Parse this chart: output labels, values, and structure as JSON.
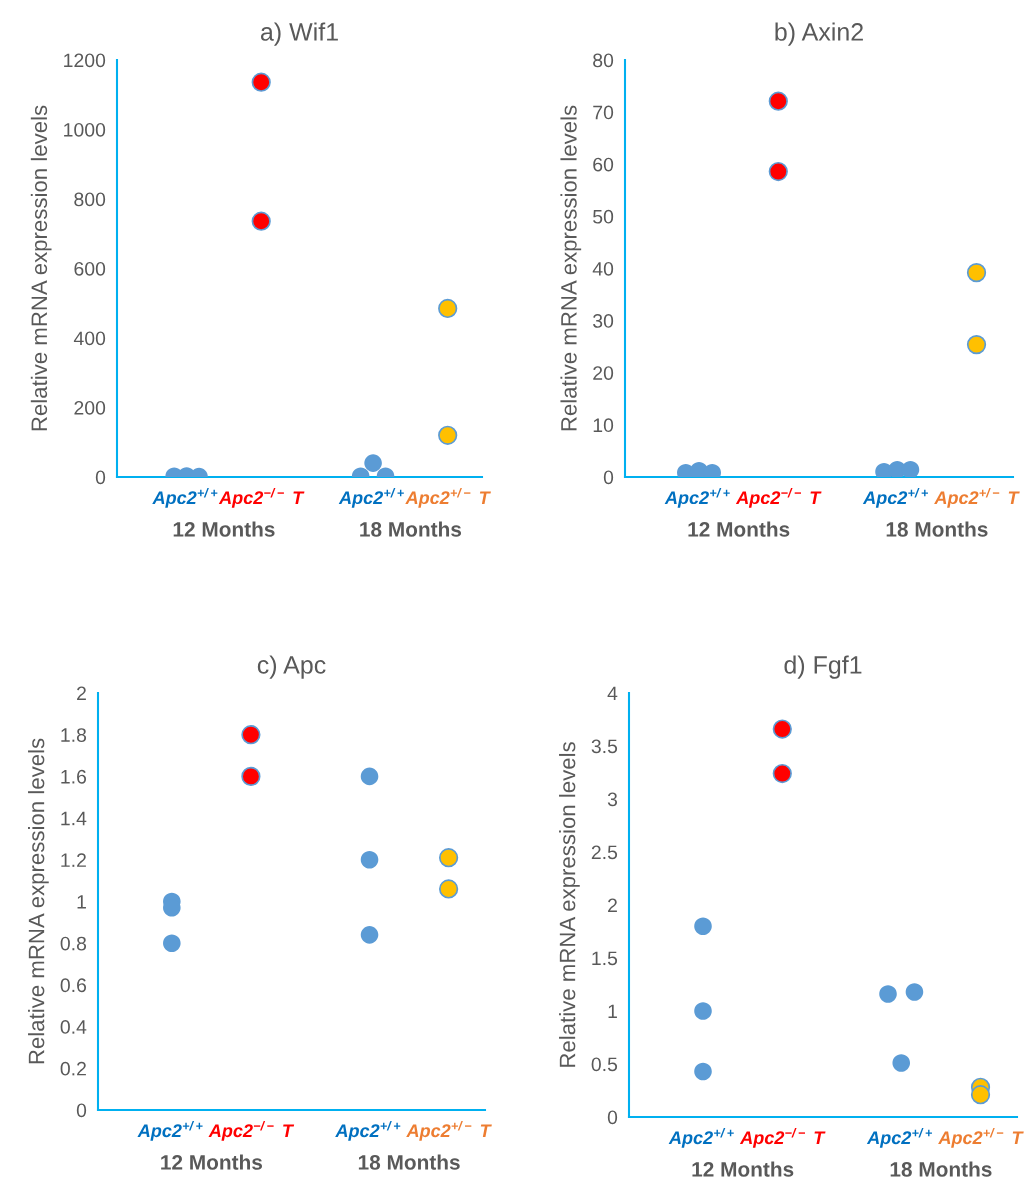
{
  "chart_data": [
    {
      "type": "scatter",
      "title": "a) Wif1",
      "ylabel": "Relative mRNA expression levels",
      "ylim": [
        0,
        1200
      ],
      "yticks": [
        0,
        200,
        400,
        600,
        800,
        1000,
        1200
      ],
      "categories": [
        null,
        "Apc2$^{+/+}$",
        null,
        null,
        null,
        null,
        null,
        "Apc2$^{−/−}$ T",
        null,
        null,
        null,
        null,
        null,
        null,
        null,
        null,
        "Apc2$^{+/+}$",
        null,
        null,
        null,
        null,
        null,
        "Apc2$^{+/−}$ T"
      ],
      "annotations": [
        "12 Months",
        "18 Months"
      ],
      "grid": false,
      "marker": "circle",
      "series": [
        {
          "color": "#5b9bd5",
          "values": [
            2,
            3,
            1,
            null,
            null,
            null,
            null,
            null,
            null,
            null,
            null,
            null,
            null,
            null,
            null,
            2,
            40,
            2,
            null,
            null,
            null,
            null,
            null
          ]
        },
        {
          "color": "#ff0000",
          "values": [
            null,
            null,
            null,
            null,
            null,
            null,
            null,
            1136,
            null,
            null,
            null,
            null,
            null,
            null,
            null,
            null,
            null,
            null,
            null,
            null,
            null,
            null,
            null
          ]
        },
        {
          "color": "#ff0000",
          "values": [
            null,
            null,
            null,
            null,
            null,
            null,
            null,
            736,
            null,
            null,
            null,
            null,
            null,
            null,
            null,
            null,
            null,
            null,
            null,
            null,
            null,
            null,
            null
          ]
        },
        {
          "color": "#ffc000",
          "values": [
            null,
            null,
            null,
            null,
            null,
            null,
            null,
            null,
            null,
            null,
            null,
            null,
            null,
            null,
            null,
            null,
            null,
            null,
            null,
            null,
            null,
            null,
            485
          ]
        },
        {
          "color": "#ffc000",
          "values": [
            null,
            null,
            null,
            null,
            null,
            null,
            null,
            null,
            null,
            null,
            null,
            null,
            null,
            null,
            null,
            null,
            null,
            null,
            null,
            null,
            null,
            null,
            120
          ]
        }
      ]
    },
    {
      "type": "scatter",
      "title": "b) Axin2",
      "ylabel": "Relative mRNA expression levels",
      "ylim": [
        0,
        80
      ],
      "yticks": [
        0,
        10,
        20,
        30,
        40,
        50,
        60,
        70,
        80
      ],
      "categories": [
        null,
        "Apc2$^{+/+}$",
        null,
        null,
        null,
        null,
        null,
        "Apc2$^{−/−}$ T",
        null,
        null,
        null,
        null,
        null,
        null,
        null,
        null,
        "Apc2$^{+/+}$",
        null,
        null,
        null,
        null,
        null,
        "Apc2$^{+/−}$ T"
      ],
      "annotations": [
        "12 Months",
        "18 Months"
      ],
      "grid": false,
      "marker": "circle",
      "series": [
        {
          "color": "#5b9bd5",
          "values": [
            0.8,
            1.2,
            0.8,
            null,
            null,
            null,
            null,
            null,
            null,
            null,
            null,
            null,
            null,
            null,
            null,
            1.0,
            1.4,
            1.4,
            null,
            null,
            null,
            null,
            null
          ]
        },
        {
          "color": "#ff0000",
          "values": [
            null,
            null,
            null,
            null,
            null,
            null,
            null,
            72.1,
            null,
            null,
            null,
            null,
            null,
            null,
            null,
            null,
            null,
            null,
            null,
            null,
            null,
            null,
            null
          ]
        },
        {
          "color": "#ff0000",
          "values": [
            null,
            null,
            null,
            null,
            null,
            null,
            null,
            58.6,
            null,
            null,
            null,
            null,
            null,
            null,
            null,
            null,
            null,
            null,
            null,
            null,
            null,
            null,
            null
          ]
        },
        {
          "color": "#ffc000",
          "values": [
            null,
            null,
            null,
            null,
            null,
            null,
            null,
            null,
            null,
            null,
            null,
            null,
            null,
            null,
            null,
            null,
            null,
            null,
            null,
            null,
            null,
            null,
            39.2
          ]
        },
        {
          "color": "#ffc000",
          "values": [
            null,
            null,
            null,
            null,
            null,
            null,
            null,
            null,
            null,
            null,
            null,
            null,
            null,
            null,
            null,
            null,
            null,
            null,
            null,
            null,
            null,
            null,
            25.4
          ]
        }
      ]
    },
    {
      "type": "scatter",
      "title": "c) Apc",
      "ylabel": "Relative mRNA expression levels",
      "ylim": [
        0,
        2
      ],
      "yticks": [
        0,
        0.2,
        0.4,
        0.6,
        0.8,
        1,
        1.2,
        1.4,
        1.6,
        1.8,
        2
      ],
      "categories": [
        null,
        "Apc2$^{+/+}$",
        null,
        null,
        null,
        null,
        null,
        "Apc2$^{−/−}$ T",
        null,
        null,
        null,
        null,
        null,
        null,
        null,
        null,
        "Apc2$^{+/+}$",
        null,
        null,
        null,
        null,
        null,
        "Apc2$^{+/−}$ T"
      ],
      "annotations": [
        "12 Months",
        "18 Months"
      ],
      "grid": false,
      "marker": "circle",
      "series": [
        {
          "color": "#5b9bd5",
          "values": [
            null,
            1.0,
            null,
            null,
            null,
            null,
            null,
            null,
            null,
            null,
            null,
            null,
            null,
            null,
            null,
            null,
            1.6,
            null,
            null,
            null,
            null,
            null,
            null
          ]
        },
        {
          "color": "#5b9bd5",
          "values": [
            null,
            0.97,
            null,
            null,
            null,
            null,
            null,
            null,
            null,
            null,
            null,
            null,
            null,
            null,
            null,
            null,
            1.2,
            null,
            null,
            null,
            null,
            null,
            null
          ]
        },
        {
          "color": "#5b9bd5",
          "values": [
            null,
            0.8,
            null,
            null,
            null,
            null,
            null,
            null,
            null,
            null,
            null,
            null,
            null,
            null,
            null,
            null,
            0.84,
            null,
            null,
            null,
            null,
            null,
            null
          ]
        },
        {
          "color": "#ff0000",
          "values": [
            null,
            null,
            null,
            null,
            null,
            null,
            null,
            1.8,
            null,
            null,
            null,
            null,
            null,
            null,
            null,
            null,
            null,
            null,
            null,
            null,
            null,
            null,
            null
          ]
        },
        {
          "color": "#ff0000",
          "values": [
            null,
            null,
            null,
            null,
            null,
            null,
            null,
            1.6,
            null,
            null,
            null,
            null,
            null,
            null,
            null,
            null,
            null,
            null,
            null,
            null,
            null,
            null,
            null
          ]
        },
        {
          "color": "#ffc000",
          "values": [
            null,
            null,
            null,
            null,
            null,
            null,
            null,
            null,
            null,
            null,
            null,
            null,
            null,
            null,
            null,
            null,
            null,
            null,
            null,
            null,
            null,
            null,
            1.21
          ]
        },
        {
          "color": "#ffc000",
          "values": [
            null,
            null,
            null,
            null,
            null,
            null,
            null,
            null,
            null,
            null,
            null,
            null,
            null,
            null,
            null,
            null,
            null,
            null,
            null,
            null,
            null,
            null,
            1.06
          ]
        }
      ]
    },
    {
      "type": "scatter",
      "title": "d) Fgf1",
      "ylabel": "Relative mRNA expression levels",
      "ylim": [
        0,
        4
      ],
      "yticks": [
        0,
        0.5,
        1,
        1.5,
        2,
        2.5,
        3,
        3.5,
        4
      ],
      "categories": [
        null,
        "Apc2$^{+/+}$",
        null,
        null,
        null,
        null,
        null,
        "Apc2$^{−/−}$ T",
        null,
        null,
        null,
        null,
        null,
        null,
        null,
        null,
        "Apc2$^{+/+}$",
        null,
        null,
        null,
        null,
        null,
        "Apc2$^{+/−}$ T"
      ],
      "annotations": [
        "12 Months",
        "18 Months"
      ],
      "grid": false,
      "marker": "circle",
      "series": [
        {
          "color": "#5b9bd5",
          "values": [
            null,
            1.8,
            null,
            null,
            null,
            null,
            null,
            null,
            null,
            null,
            null,
            null,
            null,
            null,
            null,
            1.16,
            0.51,
            1.18,
            null,
            null,
            null,
            null,
            null
          ]
        },
        {
          "color": "#5b9bd5",
          "values": [
            null,
            1.0,
            null,
            null,
            null,
            null,
            null,
            null,
            null,
            null,
            null,
            null,
            null,
            null,
            null,
            null,
            null,
            null,
            null,
            null,
            null,
            null,
            null
          ]
        },
        {
          "color": "#5b9bd5",
          "values": [
            null,
            0.43,
            null,
            null,
            null,
            null,
            null,
            null,
            null,
            null,
            null,
            null,
            null,
            null,
            null,
            null,
            null,
            null,
            null,
            null,
            null,
            null,
            null
          ]
        },
        {
          "color": "#ff0000",
          "values": [
            null,
            null,
            null,
            null,
            null,
            null,
            null,
            3.66,
            null,
            null,
            null,
            null,
            null,
            null,
            null,
            null,
            null,
            null,
            null,
            null,
            null,
            null,
            null
          ]
        },
        {
          "color": "#ff0000",
          "values": [
            null,
            null,
            null,
            null,
            null,
            null,
            null,
            3.24,
            null,
            null,
            null,
            null,
            null,
            null,
            null,
            null,
            null,
            null,
            null,
            null,
            null,
            null,
            null
          ]
        },
        {
          "color": "#ffc000",
          "values": [
            null,
            null,
            null,
            null,
            null,
            null,
            null,
            null,
            null,
            null,
            null,
            null,
            null,
            null,
            null,
            null,
            null,
            null,
            null,
            null,
            null,
            null,
            0.28
          ]
        },
        {
          "color": "#ffc000",
          "values": [
            null,
            null,
            null,
            null,
            null,
            null,
            null,
            null,
            null,
            null,
            null,
            null,
            null,
            null,
            null,
            null,
            null,
            null,
            null,
            null,
            null,
            null,
            0.21
          ]
        }
      ]
    }
  ]
}
